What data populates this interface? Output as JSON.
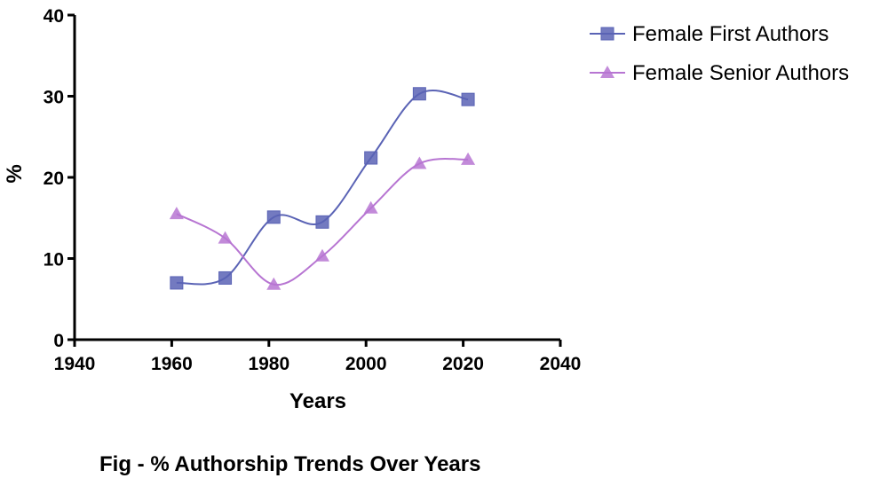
{
  "chart_data": {
    "type": "line",
    "xlabel": "Years",
    "ylabel": "%",
    "xlim": [
      1940,
      2040
    ],
    "ylim": [
      0,
      40
    ],
    "x_ticks": [
      "1940",
      "1960",
      "1980",
      "2000",
      "2020",
      "2040"
    ],
    "y_ticks": [
      "0",
      "10",
      "20",
      "30",
      "40"
    ],
    "grid": false,
    "legend_position": "top-right",
    "series": [
      {
        "name": "Female First Authors",
        "marker": "square",
        "color": "#5a63b5",
        "x": [
          1961,
          1971,
          1981,
          1991,
          2001,
          2011,
          2021
        ],
        "y": [
          7.0,
          7.6,
          15.1,
          14.5,
          22.4,
          30.3,
          29.6
        ]
      },
      {
        "name": "Female Senior Authors",
        "marker": "triangle",
        "color": "#b775d2",
        "x": [
          1961,
          1971,
          1981,
          1991,
          2001,
          2011,
          2021
        ],
        "y": [
          15.5,
          12.5,
          6.8,
          10.3,
          16.2,
          21.7,
          22.2
        ]
      }
    ]
  },
  "caption": "Fig -  % Authorship Trends Over Years"
}
